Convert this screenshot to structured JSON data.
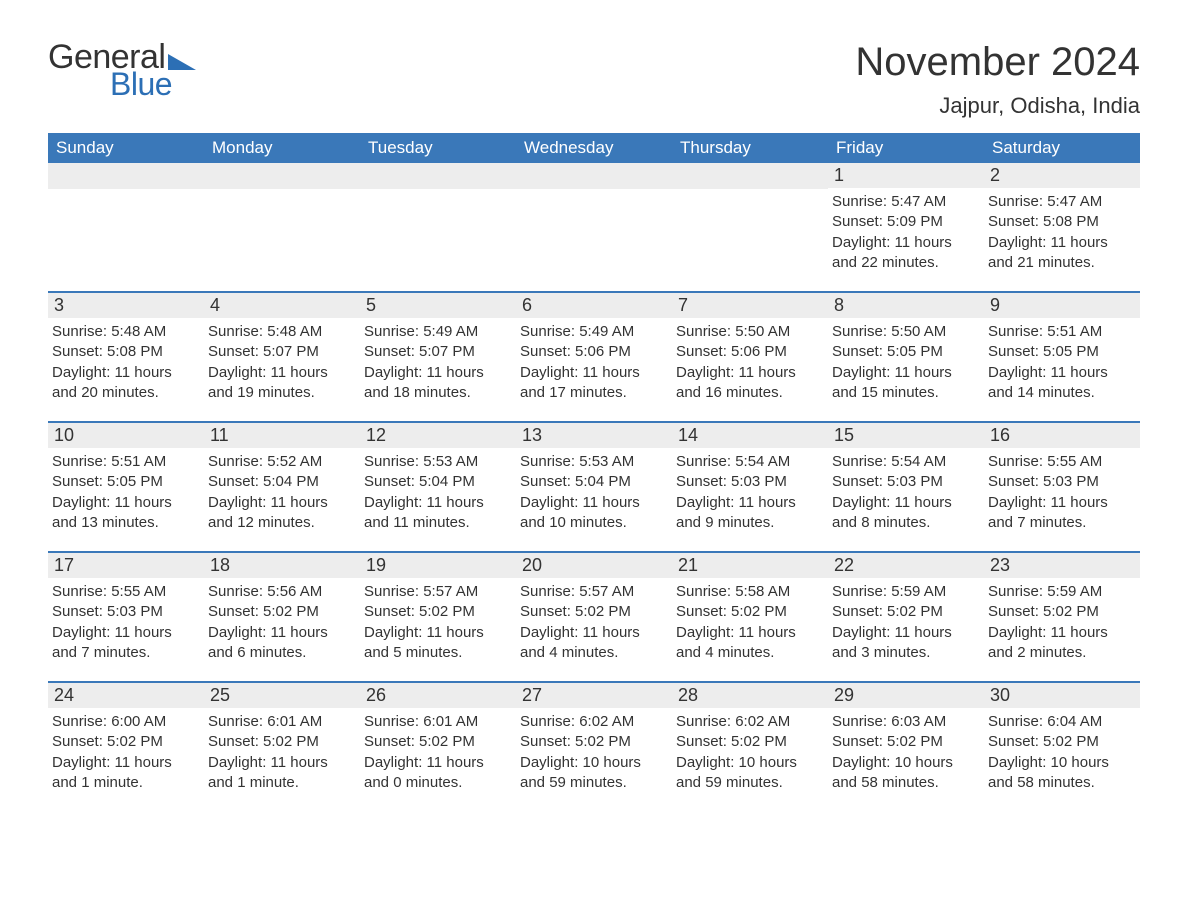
{
  "logo": {
    "general": "General",
    "blue": "Blue"
  },
  "title": "November 2024",
  "location": "Jajpur, Odisha, India",
  "colors": {
    "header_bg": "#3a78b9",
    "accent": "#2c6fb5",
    "daynum_bg": "#ededed",
    "text": "#333333",
    "white": "#ffffff"
  },
  "weekdays": [
    "Sunday",
    "Monday",
    "Tuesday",
    "Wednesday",
    "Thursday",
    "Friday",
    "Saturday"
  ],
  "weeks": [
    [
      {
        "n": "",
        "empty": true
      },
      {
        "n": "",
        "empty": true
      },
      {
        "n": "",
        "empty": true
      },
      {
        "n": "",
        "empty": true
      },
      {
        "n": "",
        "empty": true
      },
      {
        "n": "1",
        "sunrise": "Sunrise: 5:47 AM",
        "sunset": "Sunset: 5:09 PM",
        "daylight": "Daylight: 11 hours and 22 minutes."
      },
      {
        "n": "2",
        "sunrise": "Sunrise: 5:47 AM",
        "sunset": "Sunset: 5:08 PM",
        "daylight": "Daylight: 11 hours and 21 minutes."
      }
    ],
    [
      {
        "n": "3",
        "sunrise": "Sunrise: 5:48 AM",
        "sunset": "Sunset: 5:08 PM",
        "daylight": "Daylight: 11 hours and 20 minutes."
      },
      {
        "n": "4",
        "sunrise": "Sunrise: 5:48 AM",
        "sunset": "Sunset: 5:07 PM",
        "daylight": "Daylight: 11 hours and 19 minutes."
      },
      {
        "n": "5",
        "sunrise": "Sunrise: 5:49 AM",
        "sunset": "Sunset: 5:07 PM",
        "daylight": "Daylight: 11 hours and 18 minutes."
      },
      {
        "n": "6",
        "sunrise": "Sunrise: 5:49 AM",
        "sunset": "Sunset: 5:06 PM",
        "daylight": "Daylight: 11 hours and 17 minutes."
      },
      {
        "n": "7",
        "sunrise": "Sunrise: 5:50 AM",
        "sunset": "Sunset: 5:06 PM",
        "daylight": "Daylight: 11 hours and 16 minutes."
      },
      {
        "n": "8",
        "sunrise": "Sunrise: 5:50 AM",
        "sunset": "Sunset: 5:05 PM",
        "daylight": "Daylight: 11 hours and 15 minutes."
      },
      {
        "n": "9",
        "sunrise": "Sunrise: 5:51 AM",
        "sunset": "Sunset: 5:05 PM",
        "daylight": "Daylight: 11 hours and 14 minutes."
      }
    ],
    [
      {
        "n": "10",
        "sunrise": "Sunrise: 5:51 AM",
        "sunset": "Sunset: 5:05 PM",
        "daylight": "Daylight: 11 hours and 13 minutes."
      },
      {
        "n": "11",
        "sunrise": "Sunrise: 5:52 AM",
        "sunset": "Sunset: 5:04 PM",
        "daylight": "Daylight: 11 hours and 12 minutes."
      },
      {
        "n": "12",
        "sunrise": "Sunrise: 5:53 AM",
        "sunset": "Sunset: 5:04 PM",
        "daylight": "Daylight: 11 hours and 11 minutes."
      },
      {
        "n": "13",
        "sunrise": "Sunrise: 5:53 AM",
        "sunset": "Sunset: 5:04 PM",
        "daylight": "Daylight: 11 hours and 10 minutes."
      },
      {
        "n": "14",
        "sunrise": "Sunrise: 5:54 AM",
        "sunset": "Sunset: 5:03 PM",
        "daylight": "Daylight: 11 hours and 9 minutes."
      },
      {
        "n": "15",
        "sunrise": "Sunrise: 5:54 AM",
        "sunset": "Sunset: 5:03 PM",
        "daylight": "Daylight: 11 hours and 8 minutes."
      },
      {
        "n": "16",
        "sunrise": "Sunrise: 5:55 AM",
        "sunset": "Sunset: 5:03 PM",
        "daylight": "Daylight: 11 hours and 7 minutes."
      }
    ],
    [
      {
        "n": "17",
        "sunrise": "Sunrise: 5:55 AM",
        "sunset": "Sunset: 5:03 PM",
        "daylight": "Daylight: 11 hours and 7 minutes."
      },
      {
        "n": "18",
        "sunrise": "Sunrise: 5:56 AM",
        "sunset": "Sunset: 5:02 PM",
        "daylight": "Daylight: 11 hours and 6 minutes."
      },
      {
        "n": "19",
        "sunrise": "Sunrise: 5:57 AM",
        "sunset": "Sunset: 5:02 PM",
        "daylight": "Daylight: 11 hours and 5 minutes."
      },
      {
        "n": "20",
        "sunrise": "Sunrise: 5:57 AM",
        "sunset": "Sunset: 5:02 PM",
        "daylight": "Daylight: 11 hours and 4 minutes."
      },
      {
        "n": "21",
        "sunrise": "Sunrise: 5:58 AM",
        "sunset": "Sunset: 5:02 PM",
        "daylight": "Daylight: 11 hours and 4 minutes."
      },
      {
        "n": "22",
        "sunrise": "Sunrise: 5:59 AM",
        "sunset": "Sunset: 5:02 PM",
        "daylight": "Daylight: 11 hours and 3 minutes."
      },
      {
        "n": "23",
        "sunrise": "Sunrise: 5:59 AM",
        "sunset": "Sunset: 5:02 PM",
        "daylight": "Daylight: 11 hours and 2 minutes."
      }
    ],
    [
      {
        "n": "24",
        "sunrise": "Sunrise: 6:00 AM",
        "sunset": "Sunset: 5:02 PM",
        "daylight": "Daylight: 11 hours and 1 minute."
      },
      {
        "n": "25",
        "sunrise": "Sunrise: 6:01 AM",
        "sunset": "Sunset: 5:02 PM",
        "daylight": "Daylight: 11 hours and 1 minute."
      },
      {
        "n": "26",
        "sunrise": "Sunrise: 6:01 AM",
        "sunset": "Sunset: 5:02 PM",
        "daylight": "Daylight: 11 hours and 0 minutes."
      },
      {
        "n": "27",
        "sunrise": "Sunrise: 6:02 AM",
        "sunset": "Sunset: 5:02 PM",
        "daylight": "Daylight: 10 hours and 59 minutes."
      },
      {
        "n": "28",
        "sunrise": "Sunrise: 6:02 AM",
        "sunset": "Sunset: 5:02 PM",
        "daylight": "Daylight: 10 hours and 59 minutes."
      },
      {
        "n": "29",
        "sunrise": "Sunrise: 6:03 AM",
        "sunset": "Sunset: 5:02 PM",
        "daylight": "Daylight: 10 hours and 58 minutes."
      },
      {
        "n": "30",
        "sunrise": "Sunrise: 6:04 AM",
        "sunset": "Sunset: 5:02 PM",
        "daylight": "Daylight: 10 hours and 58 minutes."
      }
    ]
  ]
}
